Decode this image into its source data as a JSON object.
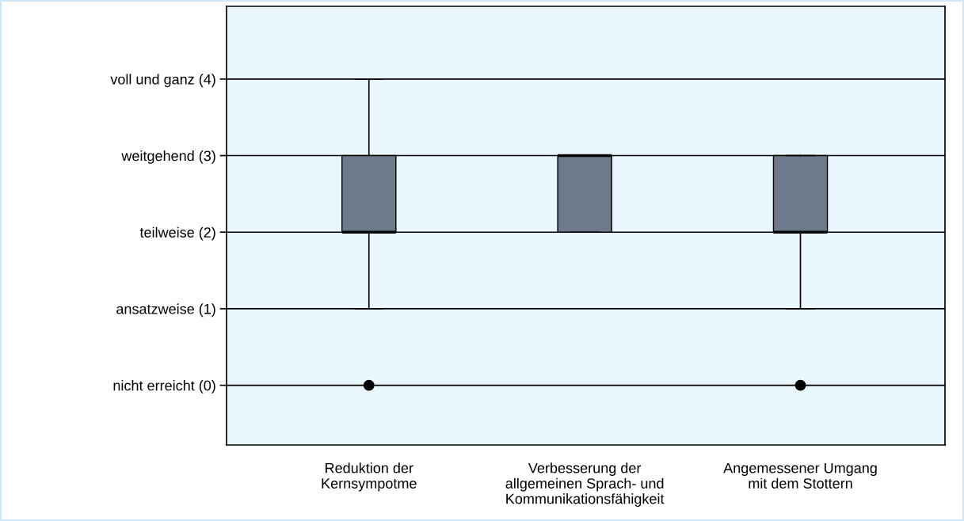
{
  "chart_data": {
    "type": "box",
    "categories": [
      "Reduktion der\nKernsympotme",
      "Verbesserung der\nallgemeinen Sprach- und\nKommunikationsfähigkeit",
      "Angemessener Umgang\nmit dem Stottern"
    ],
    "boxes": [
      {
        "low": 1,
        "q1": 2,
        "median": 2,
        "q3": 3,
        "high": 4,
        "outliers": [
          0
        ]
      },
      {
        "low": 2,
        "q1": 2,
        "median": 3,
        "q3": 3,
        "high": 3
      },
      {
        "low": 1,
        "q1": 2,
        "median": 2,
        "q3": 3,
        "high": 3,
        "outliers": [
          0
        ]
      }
    ],
    "color": "#6e798b",
    "ylim": [
      -0.78,
      4.95
    ],
    "yticks": [
      {
        "value": 0,
        "label": "nicht erreicht (0)"
      },
      {
        "value": 1,
        "label": "ansatzweise (1)"
      },
      {
        "value": 2,
        "label": "teilweise (2)"
      },
      {
        "value": 3,
        "label": "weitgehend (3)"
      },
      {
        "value": 4,
        "label": "voll und ganz (4)"
      }
    ],
    "grid": "y",
    "marker": "circle"
  }
}
